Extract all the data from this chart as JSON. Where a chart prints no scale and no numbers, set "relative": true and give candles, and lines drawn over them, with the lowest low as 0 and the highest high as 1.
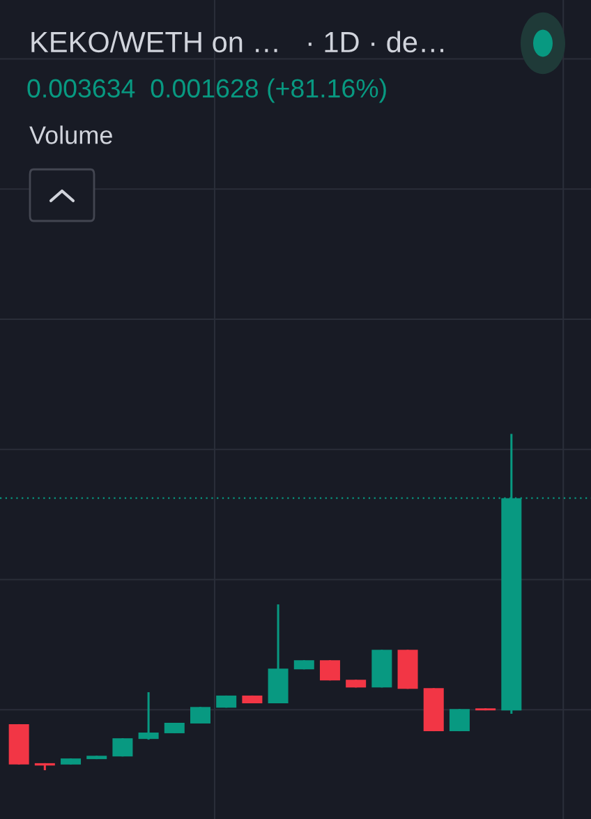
{
  "chart_data": {
    "type": "candlestick",
    "title": "KEKO/WETH on …   · 1D · de…",
    "subtitle": "0.003634  0.001628 (+81.16%)",
    "annotations": [
      "Volume"
    ],
    "relative": true,
    "grid": true,
    "legend": false,
    "categories": [
      null,
      null,
      null,
      null,
      null,
      null,
      null,
      null,
      null,
      null,
      null,
      null,
      null,
      null,
      null,
      null,
      null,
      null,
      null,
      null
    ],
    "ohlc": [
      [
        0.137,
        0.137,
        0.017,
        0.017
      ],
      [
        0.021,
        0.021,
        0.0,
        0.014
      ],
      [
        0.017,
        0.035,
        0.017,
        0.035
      ],
      [
        0.033,
        0.043,
        0.033,
        0.043
      ],
      [
        0.041,
        0.095,
        0.041,
        0.095
      ],
      [
        0.093,
        0.232,
        0.091,
        0.112
      ],
      [
        0.11,
        0.141,
        0.11,
        0.141
      ],
      [
        0.139,
        0.188,
        0.139,
        0.188
      ],
      [
        0.186,
        0.222,
        0.186,
        0.222
      ],
      [
        0.222,
        0.222,
        0.199,
        0.199
      ],
      [
        0.199,
        0.493,
        0.199,
        0.302
      ],
      [
        0.3,
        0.327,
        0.3,
        0.327
      ],
      [
        0.327,
        0.327,
        0.267,
        0.267
      ],
      [
        0.269,
        0.269,
        0.246,
        0.246
      ],
      [
        0.246,
        0.358,
        0.246,
        0.358
      ],
      [
        0.358,
        0.358,
        0.242,
        0.242
      ],
      [
        0.244,
        0.244,
        0.116,
        0.116
      ],
      [
        0.116,
        0.182,
        0.116,
        0.182
      ],
      [
        0.184,
        0.184,
        0.178,
        0.178
      ],
      [
        0.178,
        1.0,
        0.168,
        0.809
      ]
    ],
    "colors": [
      "#f23645",
      "#f23645",
      "#089981",
      "#089981",
      "#089981",
      "#089981",
      "#089981",
      "#089981",
      "#089981",
      "#f23645",
      "#089981",
      "#089981",
      "#f23645",
      "#f23645",
      "#089981",
      "#f23645",
      "#f23645",
      "#089981",
      "#f23645",
      "#089981"
    ],
    "ref_lines": [
      {
        "axis": "y",
        "value": 0.809,
        "color": "#089981",
        "line_style": "dotted"
      }
    ]
  }
}
